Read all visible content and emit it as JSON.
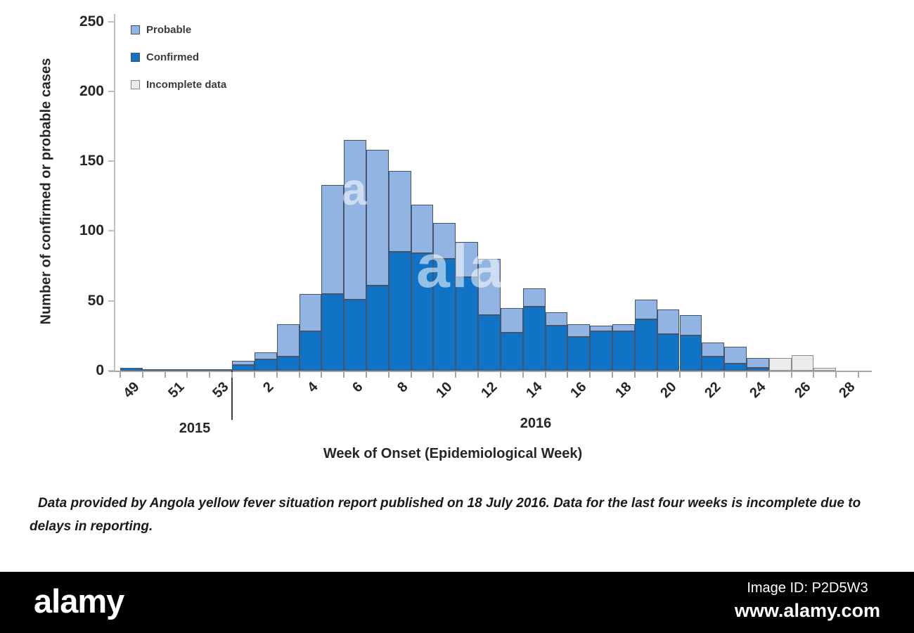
{
  "chart_data": {
    "type": "bar",
    "stacked": true,
    "xlabel": "Week of Onset (Epidemiological Week)",
    "ylabel": "Number of confirmed or probable cases",
    "ylim": [
      0,
      250
    ],
    "yticks": [
      0,
      50,
      100,
      150,
      200,
      250
    ],
    "grid": "off",
    "legend_position": "top-left-inside",
    "categories": [
      "49",
      "50",
      "51",
      "52",
      "53",
      "1",
      "2",
      "3",
      "4",
      "5",
      "6",
      "7",
      "8",
      "9",
      "10",
      "11",
      "12",
      "13",
      "14",
      "15",
      "16",
      "17",
      "18",
      "19",
      "20",
      "21",
      "22",
      "23",
      "24",
      "25",
      "26",
      "27",
      "28"
    ],
    "x_tick_labels": [
      "49",
      "51",
      "53",
      "2",
      "4",
      "6",
      "8",
      "10",
      "12",
      "14",
      "16",
      "18",
      "20",
      "22",
      "24",
      "26",
      "28"
    ],
    "year_left": "2015",
    "year_right": "2016",
    "series": [
      {
        "name": "Confirmed",
        "color": "#1173c5",
        "border": "#44546a",
        "values": [
          2,
          1,
          1,
          1,
          1,
          4,
          8,
          10,
          28,
          55,
          51,
          61,
          85,
          84,
          80,
          67,
          40,
          27,
          46,
          32,
          24,
          28,
          28,
          37,
          26,
          25,
          10,
          5,
          2,
          0,
          0,
          0,
          0
        ]
      },
      {
        "name": "Probable",
        "color": "#92b4e3",
        "border": "#44546a",
        "values": [
          0,
          0,
          0,
          0,
          0,
          3,
          5,
          23,
          27,
          78,
          114,
          97,
          58,
          35,
          26,
          25,
          40,
          18,
          13,
          10,
          9,
          4,
          5,
          14,
          18,
          15,
          10,
          12,
          7,
          0,
          0,
          0,
          0
        ]
      },
      {
        "name": "Incomplete data",
        "color": "#ebebeb",
        "border": "#8c8c8c",
        "values": [
          0,
          0,
          0,
          0,
          0,
          0,
          0,
          0,
          0,
          0,
          0,
          0,
          0,
          0,
          0,
          0,
          0,
          0,
          0,
          0,
          0,
          0,
          0,
          0,
          0,
          0,
          0,
          0,
          0,
          9,
          11,
          2,
          0
        ]
      }
    ],
    "legend": [
      {
        "label": "Probable",
        "color": "#92b4e3",
        "border": "#44546a"
      },
      {
        "label": "Confirmed",
        "color": "#1173c5",
        "border": "#44546a"
      },
      {
        "label": "Incomplete data",
        "color": "#ebebeb",
        "border": "#8c8c8c"
      }
    ]
  },
  "caption": "Data provided by Angola yellow fever situation report published on 18 July 2016. Data for the last four weeks is incomplete due to delays in reporting.",
  "watermark": {
    "ghost_word": "alamy",
    "ghost_letter": "a",
    "logo": "alamy",
    "image_id": "Image ID: P2D5W3",
    "url": "www.alamy.com"
  }
}
